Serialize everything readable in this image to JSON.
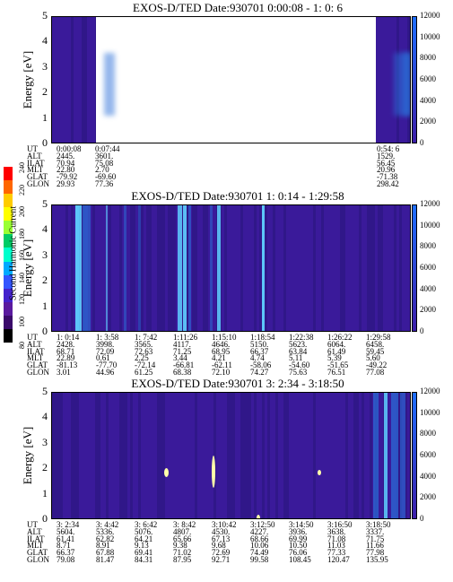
{
  "colors": {
    "background": "#3b1a9a",
    "background_alt": "#2e1785",
    "streak_blue": "#2a6fd8",
    "streak_cyan": "#5fd0ff",
    "white_gap": "#ffffff",
    "temp_bar_top": "#1e6fff",
    "temp_bar_bottom": "#3c1ea8"
  },
  "left_colorbar": {
    "label": "Second Harmonic Current",
    "ticks": [
      "240",
      "220",
      "200",
      "180",
      "160",
      "140",
      "120",
      "100",
      "80"
    ],
    "colors": [
      "#ff0000",
      "#ff6600",
      "#ffcc00",
      "#ffff00",
      "#99ff33",
      "#00cc66",
      "#00ffcc",
      "#00aaff",
      "#3355ff",
      "#4422cc",
      "#5a1a9e",
      "#3a0a6a",
      "#000000"
    ]
  },
  "chart_data": [
    {
      "type": "heatmap",
      "title": "EXOS-D/TED   Date:930701   0:00:08 - 1: 0: 6",
      "ylabel": "Energy [eV]",
      "y2label": "Temperature [K]",
      "yticks": [
        "5",
        "4",
        "3",
        "2",
        "1",
        "0"
      ],
      "y2ticks": [
        "12000",
        "10000",
        "8000",
        "6000",
        "4000",
        "2000",
        "0"
      ],
      "ylim": [
        0,
        5
      ],
      "y2lim": [
        0,
        12000
      ],
      "data_gap": [
        "0:07:44",
        "0:54: 6"
      ],
      "table": {
        "row_labels": [
          "UT",
          "ALT",
          "ILAT",
          "MLT",
          "GLAT",
          "GLON"
        ],
        "columns": [
          {
            "values": [
              "0:00:08",
              "2445.",
              "70.94",
              "22.80",
              "-79.92",
              "29.93"
            ]
          },
          {
            "values": [
              "0:07:44",
              "3601.",
              "75.08",
              "2.70",
              "-69.60",
              "77.36"
            ]
          },
          {
            "values": [
              "0:54: 6",
              "1529.",
              "56.45",
              "20.96",
              "-71.38",
              "298.42"
            ]
          }
        ]
      }
    },
    {
      "type": "heatmap",
      "title": "EXOS-D/TED   Date:930701   1: 0:14 - 1:29:58",
      "ylabel": "Energy [eV]",
      "y2label": "Temperature [K]",
      "yticks": [
        "5",
        "4",
        "3",
        "2",
        "1",
        "0"
      ],
      "y2ticks": [
        "12000",
        "10000",
        "8000",
        "6000",
        "4000",
        "2000",
        "0"
      ],
      "ylim": [
        0,
        5
      ],
      "y2lim": [
        0,
        12000
      ],
      "table": {
        "row_labels": [
          "UT",
          "ALT",
          "ILAT",
          "MLT",
          "GLAT",
          "GLON"
        ],
        "columns": [
          {
            "values": [
              "1: 0:14",
              "2428.",
              "68.71",
              "22.89",
              "-81.13",
              "3.01"
            ]
          },
          {
            "values": [
              "1: 3:58",
              "3998.",
              "72.09",
              "0.61",
              "-77.70",
              "44.96"
            ]
          },
          {
            "values": [
              "1: 7:42",
              "3565.",
              "72.63",
              "2.25",
              "-72.14",
              "61.25"
            ]
          },
          {
            "values": [
              "1:11:26",
              "4117.",
              "71.25",
              "3.44",
              "-66.81",
              "68.38"
            ]
          },
          {
            "values": [
              "1:15:10",
              "4646.",
              "68.95",
              "4.21",
              "-62.11",
              "72.10"
            ]
          },
          {
            "values": [
              "1:18:54",
              "5150.",
              "66.37",
              "4.74",
              "-58.06",
              "74.27"
            ]
          },
          {
            "values": [
              "1:22:38",
              "5623.",
              "63.84",
              "5.11",
              "-54.60",
              "75.63"
            ]
          },
          {
            "values": [
              "1:26:22",
              "6064.",
              "61.49",
              "5.39",
              "-51.65",
              "76.51"
            ]
          },
          {
            "values": [
              "1:29:58",
              "6458.",
              "59.45",
              "5.60",
              "-49.22",
              "77.08"
            ]
          }
        ]
      }
    },
    {
      "type": "heatmap",
      "title": "EXOS-D/TED   Date:930701   3: 2:34 - 3:18:50",
      "ylabel": "Energy [eV]",
      "y2label": "Temperature [K]",
      "yticks": [
        "5",
        "4",
        "3",
        "2",
        "1",
        "0"
      ],
      "y2ticks": [
        "12000",
        "10000",
        "8000",
        "6000",
        "4000",
        "2000",
        "0"
      ],
      "ylim": [
        0,
        5
      ],
      "y2lim": [
        0,
        12000
      ],
      "table": {
        "row_labels": [
          "UT",
          "ALT",
          "ILAT",
          "MLT",
          "GLAT",
          "GLON"
        ],
        "columns": [
          {
            "values": [
              "3: 2:34",
              "5604.",
              "61.41",
              "8.71",
              "66.37",
              "79.08"
            ]
          },
          {
            "values": [
              "3: 4:42",
              "5336.",
              "62.82",
              "8.91",
              "67.88",
              "81.47"
            ]
          },
          {
            "values": [
              "3: 6:42",
              "5076.",
              "64.21",
              "9.13",
              "69.41",
              "84.31"
            ]
          },
          {
            "values": [
              "3: 8:42",
              "4807.",
              "65.66",
              "9.38",
              "71.02",
              "87.95"
            ]
          },
          {
            "values": [
              "3:10:42",
              "4530.",
              "67.13",
              "9.68",
              "72.69",
              "92.71"
            ]
          },
          {
            "values": [
              "3:12:50",
              "4227.",
              "68.66",
              "10.06",
              "74.49",
              "99.58"
            ]
          },
          {
            "values": [
              "3:14:50",
              "3936.",
              "69.99",
              "10.50",
              "76.06",
              "108.45"
            ]
          },
          {
            "values": [
              "3:16:50",
              "3638.",
              "71.08",
              "11.03",
              "77.33",
              "120.47"
            ]
          },
          {
            "values": [
              "3:18:50",
              "3337.",
              "71.75",
              "11.66",
              "77.98",
              "135.95"
            ]
          }
        ]
      }
    }
  ]
}
